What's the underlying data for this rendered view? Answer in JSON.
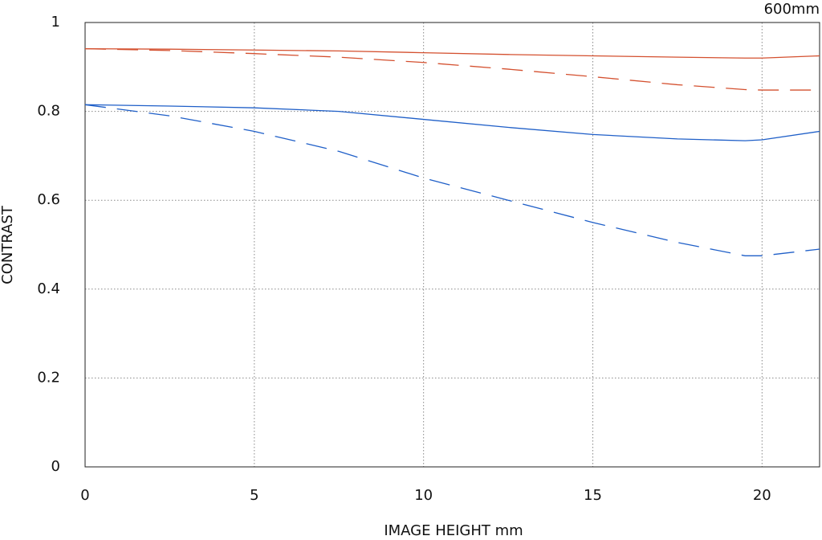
{
  "chart_data": {
    "type": "line",
    "annotation": "600mm",
    "xlabel": "IMAGE HEIGHT  mm",
    "ylabel": "CONTRAST",
    "x": [
      0,
      2.5,
      5,
      7.5,
      10,
      12.5,
      15,
      17.5,
      19.5,
      20,
      21.7
    ],
    "series": [
      {
        "color": "#d4502f",
        "dashed": false,
        "values": [
          0.941,
          0.94,
          0.938,
          0.936,
          0.932,
          0.928,
          0.925,
          0.922,
          0.92,
          0.92,
          0.925
        ]
      },
      {
        "color": "#d4502f",
        "dashed": true,
        "values": [
          0.941,
          0.937,
          0.93,
          0.922,
          0.91,
          0.895,
          0.878,
          0.86,
          0.849,
          0.848,
          0.848
        ]
      },
      {
        "color": "#1f5fc8",
        "dashed": false,
        "values": [
          0.815,
          0.812,
          0.808,
          0.8,
          0.782,
          0.764,
          0.748,
          0.738,
          0.734,
          0.736,
          0.755
        ]
      },
      {
        "color": "#1f5fc8",
        "dashed": true,
        "values": [
          0.815,
          0.79,
          0.755,
          0.71,
          0.65,
          0.6,
          0.55,
          0.505,
          0.475,
          0.475,
          0.49
        ]
      }
    ],
    "xlim": [
      0,
      21.7
    ],
    "xticks": [
      0,
      5,
      10,
      15,
      20
    ],
    "ylim": [
      0,
      1
    ],
    "yticks": [
      0,
      0.2,
      0.4,
      0.6,
      0.8,
      1
    ],
    "grid": true
  }
}
